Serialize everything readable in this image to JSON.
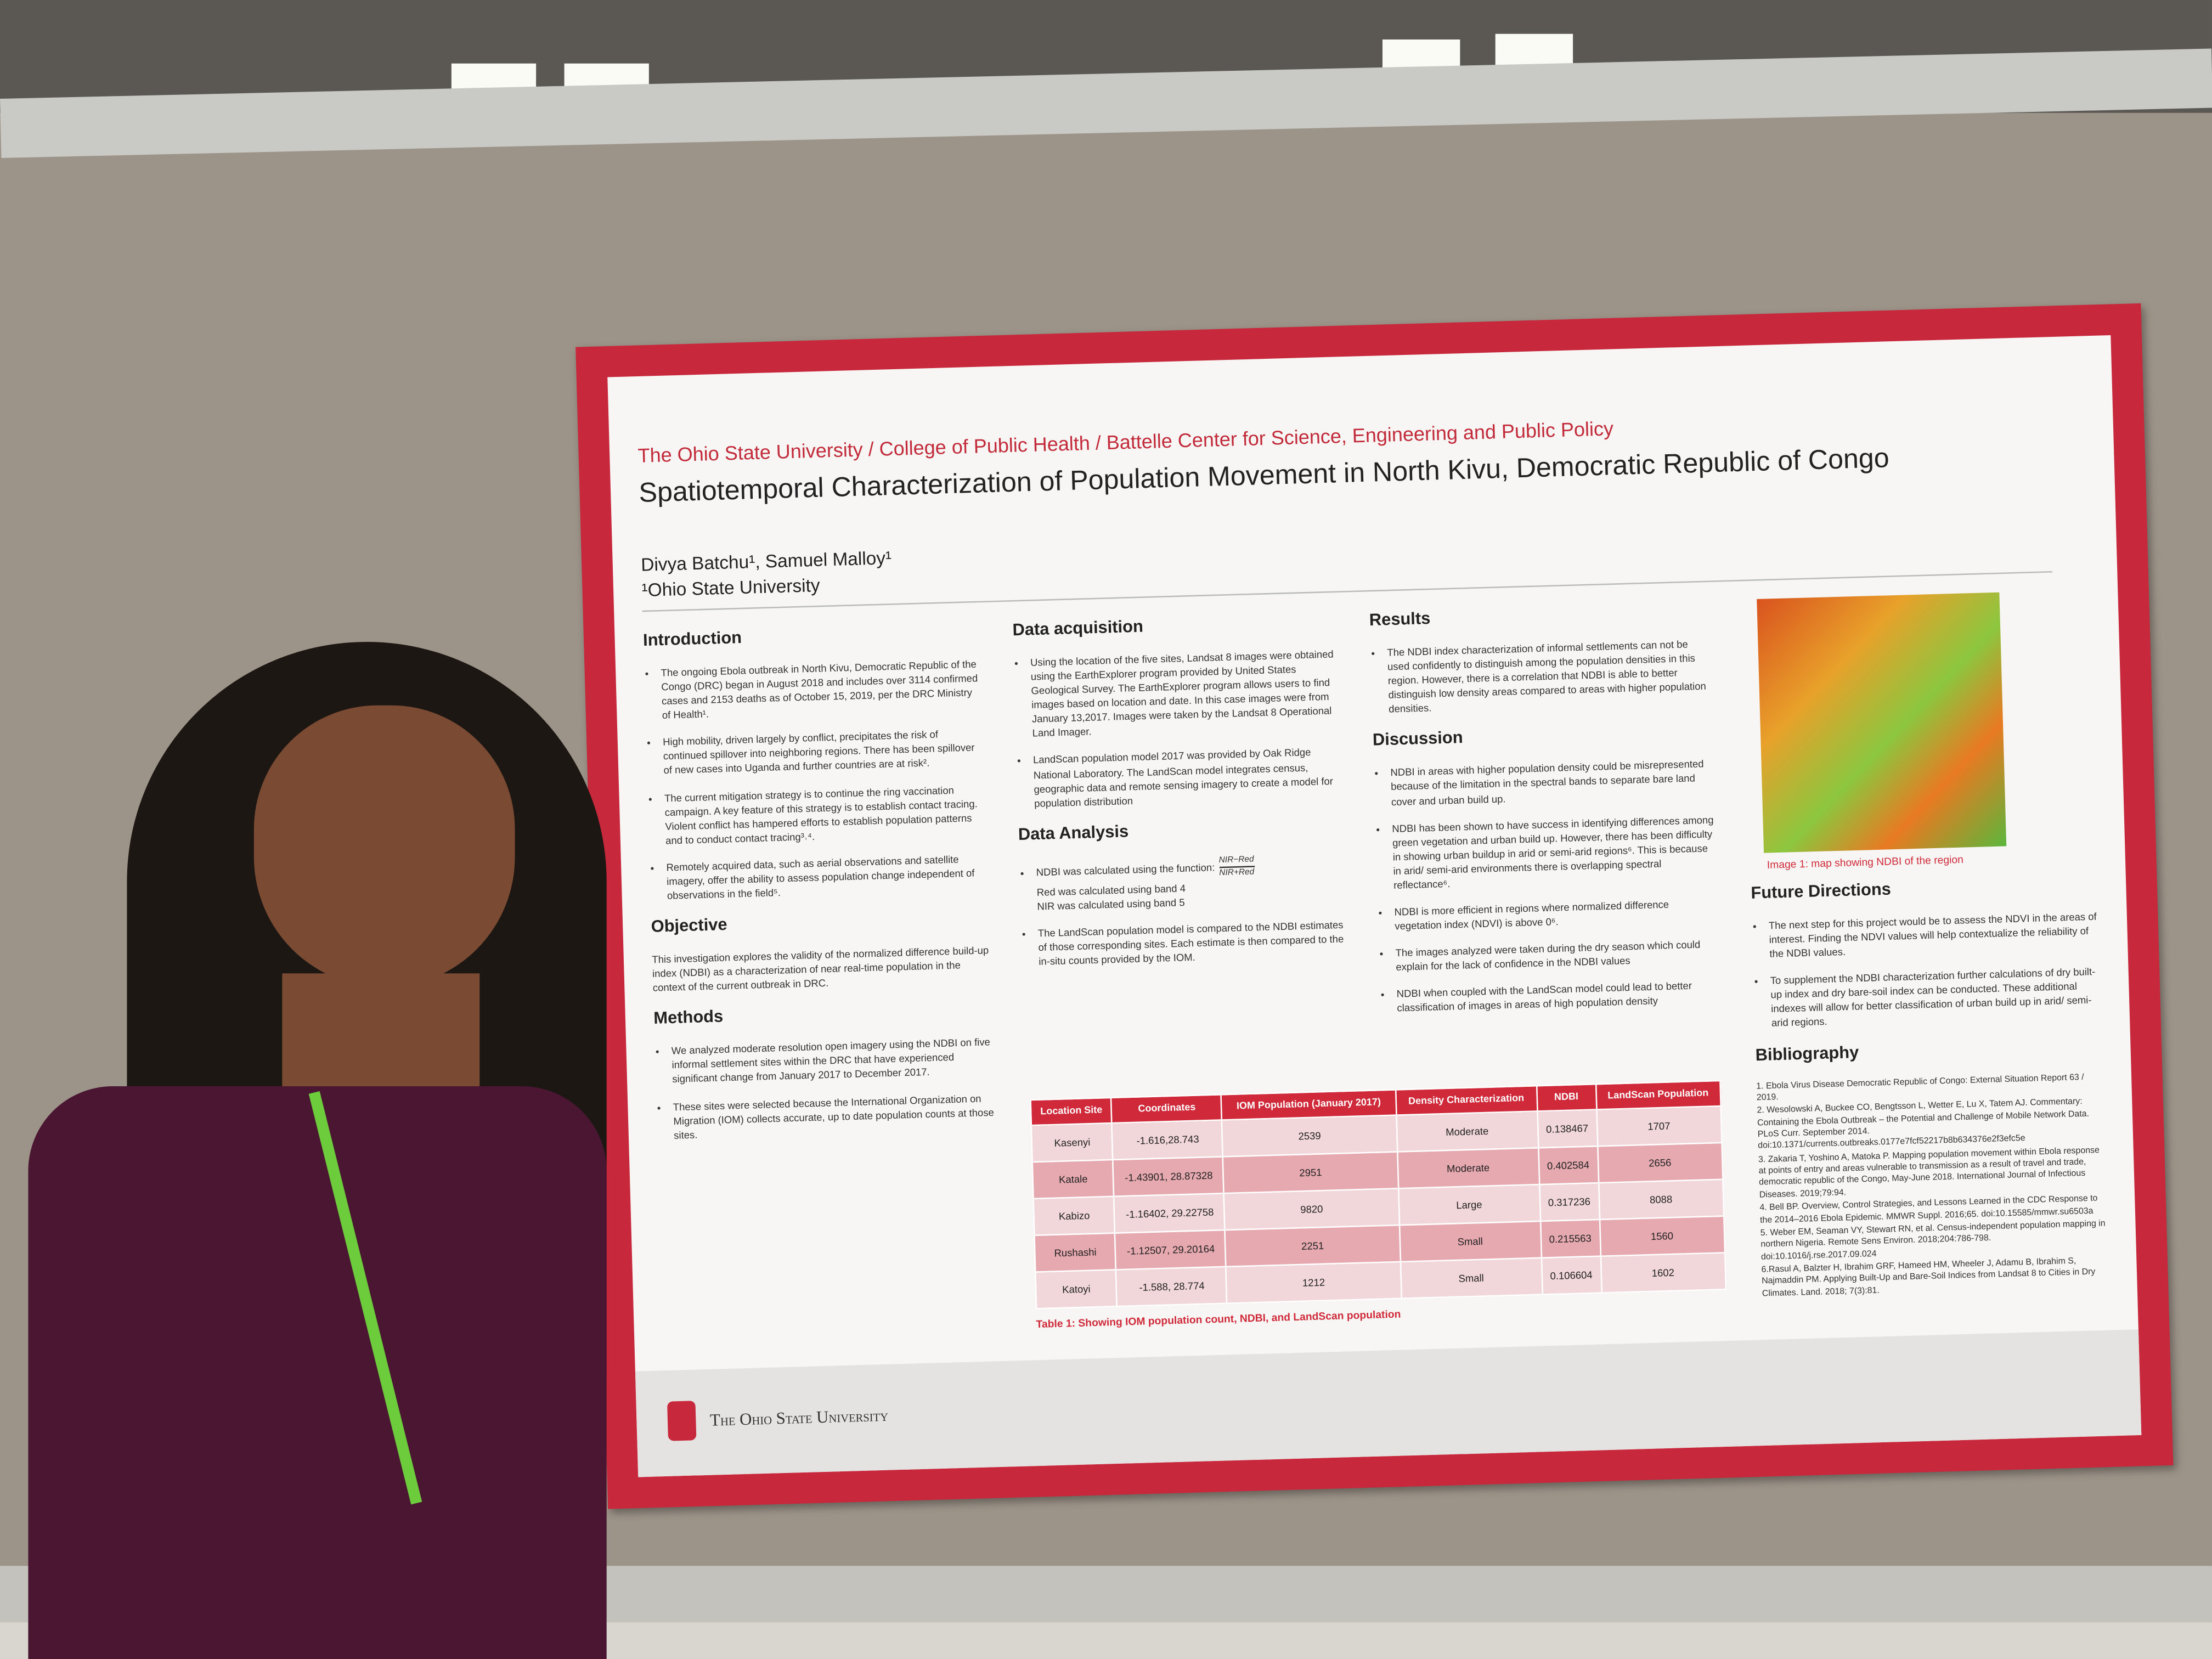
{
  "poster": {
    "affiliation": "The Ohio State University / College of Public Health / Battelle Center for Science, Engineering and Public Policy",
    "title": "Spatiotemporal Characterization of Population Movement in North Kivu, Democratic Republic of Congo",
    "authors": "Divya Batchu¹, Samuel Malloy¹",
    "institution": "¹Ohio State University",
    "introduction": {
      "heading": "Introduction",
      "bullets": [
        "The ongoing Ebola outbreak in North Kivu, Democratic Republic of the Congo (DRC) began in August 2018 and includes over 3114 confirmed cases and 2153 deaths as of October 15, 2019, per the DRC Ministry of Health¹.",
        "High mobility, driven largely by conflict, precipitates the risk of continued spillover into neighboring regions. There has been spillover of new cases into Uganda and further countries are at risk².",
        "The current mitigation strategy is to continue the ring vaccination campaign. A key feature of this strategy is to establish contact tracing. Violent conflict has hampered efforts to establish population patterns and to conduct contact tracing³˒⁴.",
        "Remotely acquired data, such as aerial observations and satellite imagery, offer the ability to assess population change independent of observations in the field⁵."
      ]
    },
    "objective": {
      "heading": "Objective",
      "text": "This investigation explores the validity of the normalized difference build-up index (NDBI) as a characterization of near real-time population in the context of the current outbreak in DRC."
    },
    "methods": {
      "heading": "Methods",
      "bullets": [
        "We analyzed moderate resolution open imagery using the NDBI on five informal settlement sites within the DRC that have experienced significant change from January 2017 to December 2017.",
        "These sites were selected because the International Organization on Migration (IOM) collects accurate, up to date population counts at those sites."
      ]
    },
    "data_acquisition": {
      "heading": "Data acquisition",
      "bullets": [
        "Using the location of the five sites, Landsat 8 images were obtained using the EarthExplorer program provided by United States Geological Survey. The EarthExplorer program allows users to find images based on location and date. In this case images were from January 13,2017. Images were taken by the Landsat 8 Operational Land Imager.",
        "LandScan population model 2017 was provided by Oak Ridge National Laboratory. The LandScan model integrates census, geographic data and remote sensing imagery to create a model for population distribution"
      ]
    },
    "data_analysis": {
      "heading": "Data Analysis",
      "function_text": "NDBI was calculated using the function:",
      "numerator": "NIR−Red",
      "denominator": "NIR+Red",
      "band_lines": [
        "Red was calculated using band 4",
        "NIR was calculated using band 5"
      ],
      "bullets": [
        "The LandScan population model is compared to the NDBI estimates of those corresponding sites. Each estimate is then compared to the in-situ counts provided by the IOM."
      ]
    },
    "results": {
      "heading": "Results",
      "bullets": [
        "The NDBI index characterization of informal settlements can not be used confidently to distinguish among the population densities in this region. However, there is a correlation that NDBI is able to better distinguish low density areas compared to areas with higher population densities."
      ]
    },
    "discussion": {
      "heading": "Discussion",
      "bullets": [
        "NDBI in areas with higher population density could be misrepresented because of the limitation in the spectral bands to separate bare land cover and urban build up.",
        "NDBI has been shown to have success in identifying differences among green vegetation and urban build up. However, there has been difficulty in showing urban buildup in arid or semi-arid regions⁶. This is because in arid/ semi-arid environments there is overlapping spectral reflectance⁶.",
        "NDBI is more efficient in regions where normalized difference vegetation index (NDVI) is above 0⁶.",
        "The images analyzed were taken during the dry season which could explain for the lack of confidence in the NDBI values",
        "NDBI when coupled with the LandScan model could lead to better classification of images in areas of high population density"
      ]
    },
    "map_caption": "Image 1: map showing NDBI of the region",
    "future_directions": {
      "heading": "Future Directions",
      "bullets": [
        "The next step for this project would be to assess the NDVI in the areas of interest. Finding the NDVI values will help contextualize the reliability of the NDBI values.",
        "To supplement the NDBI characterization further calculations of dry built-up index and dry bare-soil index can be conducted. These additional indexes will allow for better classification of urban build up in arid/ semi-arid regions."
      ]
    },
    "bibliography": {
      "heading": "Bibliography",
      "entries": [
        "1. Ebola Virus Disease Democratic Republic of Congo: External Situation Report 63 / 2019.",
        "2. Wesolowski A, Buckee CO, Bengtsson L, Wetter E, Lu X, Tatem AJ. Commentary: Containing the Ebola Outbreak – the Potential and Challenge of Mobile Network Data. PLoS Curr. September 2014. doi:10.1371/currents.outbreaks.0177e7fcf52217b8b634376e2f3efc5e",
        "3. Zakaria T, Yoshino A, Matoka P. Mapping population movement within Ebola response at points of entry and areas vulnerable to transmission as a result of travel and trade, democratic republic of the Congo, May-June 2018. International Journal of Infectious Diseases. 2019;79:94.",
        "4. Bell BP. Overview, Control Strategies, and Lessons Learned in the CDC Response to the 2014–2016 Ebola Epidemic. MMWR Suppl. 2016;65. doi:10.15585/mmwr.su6503a",
        "5. Weber EM, Seaman VY, Stewart RN, et al. Census-independent population mapping in northern Nigeria. Remote Sens Environ. 2018;204:786-798. doi:10.1016/j.rse.2017.09.024",
        "6.Rasul A, Balzter H, Ibrahim GRF, Hameed HM, Wheeler J, Adamu B, Ibrahim S, Najmaddin PM. Applying Built-Up and Bare-Soil Indices from Landsat 8 to Cities in Dry Climates. Land. 2018; 7(3):81."
      ]
    },
    "table": {
      "headers": [
        "Location Site",
        "Coordinates",
        "IOM Population (January 2017)",
        "Density Characterization",
        "NDBI",
        "LandScan Population"
      ],
      "rows": [
        [
          "Kasenyi",
          "-1.616,28.743",
          "2539",
          "Moderate",
          "0.138467",
          "1707"
        ],
        [
          "Katale",
          "-1.43901, 28.87328",
          "2951",
          "Moderate",
          "0.402584",
          "2656"
        ],
        [
          "Kabizo",
          "-1.16402, 29.22758",
          "9820",
          "Large",
          "0.317236",
          "8088"
        ],
        [
          "Rushashi",
          "-1.12507, 29.20164",
          "2251",
          "Small",
          "0.215563",
          "1560"
        ],
        [
          "Katoyi",
          "-1.588, 28.774",
          "1212",
          "Small",
          "0.106604",
          "1602"
        ]
      ],
      "caption": "Table 1: Showing IOM population count, NDBI, and LandScan population"
    },
    "footer": "The Ohio State University"
  }
}
